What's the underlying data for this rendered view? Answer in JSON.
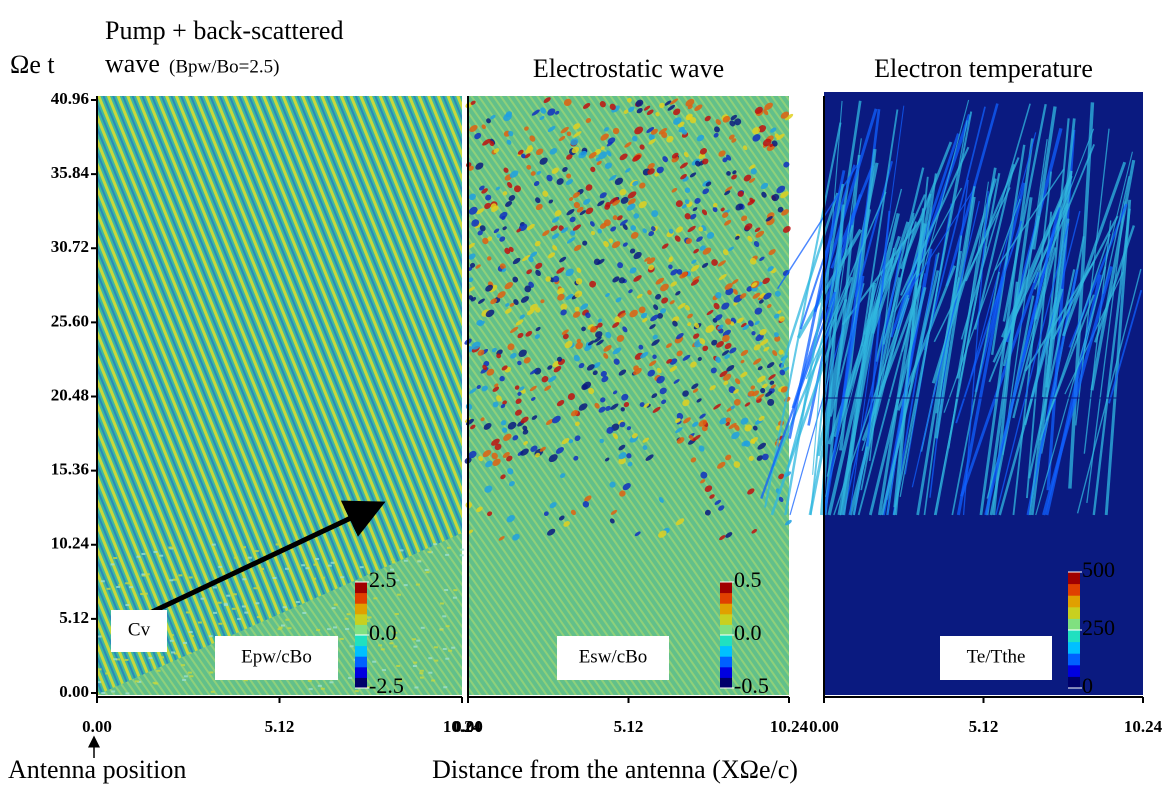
{
  "chart_data": [
    {
      "type": "heatmap",
      "title": "Pump + back-scattered",
      "subtitle": "wave",
      "note": "(Bpw/Bo=2.5)",
      "ylabel": "Ωe t",
      "xlim": [
        0,
        10.24
      ],
      "ylim": [
        0,
        40.96
      ],
      "xticks": [
        {
          "value": 0,
          "label": "0.00"
        },
        {
          "value": 5.12,
          "label": "5.12"
        },
        {
          "value": 10.24,
          "label": "10.24"
        }
      ],
      "yticks": [
        {
          "value": 0,
          "label": "0.00"
        },
        {
          "value": 5.12,
          "label": "5.12"
        },
        {
          "value": 10.24,
          "label": "10.24"
        },
        {
          "value": 15.36,
          "label": "15.36"
        },
        {
          "value": 20.48,
          "label": "20.48"
        },
        {
          "value": 25.6,
          "label": "25.60"
        },
        {
          "value": 30.72,
          "label": "30.72"
        },
        {
          "value": 35.84,
          "label": "35.84"
        },
        {
          "value": 40.96,
          "label": "40.96"
        }
      ],
      "colorbar_label": "Epw/cBo",
      "clim": [
        -2.5,
        2.5
      ],
      "cticks": [
        2.5,
        {
          "value": 0,
          "label": "0.0"
        },
        -2.5
      ],
      "annotation": "Cv"
    },
    {
      "type": "heatmap",
      "title": "Electrostatic wave",
      "xlim": [
        0,
        10.24
      ],
      "ylim": [
        0,
        40.96
      ],
      "xticks": [
        {
          "value": 0,
          "label": "0.00"
        },
        {
          "value": 5.12,
          "label": "5.12"
        },
        {
          "value": 10.24,
          "label": "10.24"
        }
      ],
      "colorbar_label": "Esw/cBo",
      "clim": [
        -0.5,
        0.5
      ],
      "cticks": [
        0.5,
        {
          "value": 0,
          "label": "0.0"
        },
        -0.5
      ]
    },
    {
      "type": "heatmap",
      "title": "Electron temperature",
      "xlim": [
        0,
        10.24
      ],
      "ylim": [
        0,
        40.96
      ],
      "xticks": [
        {
          "value": 0,
          "label": "0.00"
        },
        {
          "value": 5.12,
          "label": "5.12"
        },
        {
          "value": 10.24,
          "label": "10.24"
        }
      ],
      "colorbar_label": "Te/Tthe",
      "clim": [
        0,
        500
      ],
      "cticks": [
        500,
        250,
        0
      ]
    }
  ],
  "xlabel": "Distance from the antenna (XΩe/c)",
  "antenna_label": "Antenna position"
}
